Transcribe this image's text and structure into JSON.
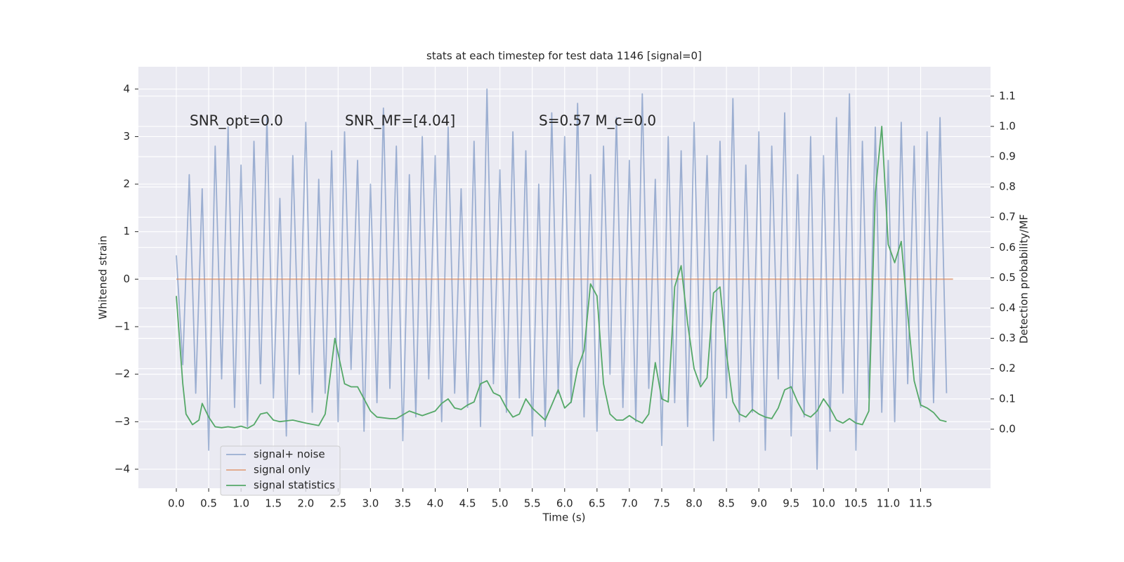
{
  "chart_data": {
    "type": "line",
    "title": "stats at each timestep for test data 1146 [signal=0]",
    "xlabel": "Time (s)",
    "ylabel": "Whitened strain",
    "y2label": "Detection probability/MF",
    "annotations": [
      "SNR_opt=0.0",
      "SNR_MF=[4.04]",
      "S=0.57   M_c=0.0"
    ],
    "xlim": [
      -0.586,
      12.58
    ],
    "ylim": [
      -4.4,
      4.47
    ],
    "y2lim": [
      -0.195,
      1.197
    ],
    "xticks": [
      {
        "value": 0,
        "label": "0.0"
      },
      {
        "value": 0.5,
        "label": "0.5"
      },
      {
        "value": 1,
        "label": "1.0"
      },
      {
        "value": 1.5,
        "label": "1.5"
      },
      {
        "value": 2,
        "label": "2.0"
      },
      {
        "value": 2.5,
        "label": "2.5"
      },
      {
        "value": 3,
        "label": "3.0"
      },
      {
        "value": 3.5,
        "label": "3.5"
      },
      {
        "value": 4,
        "label": "4.0"
      },
      {
        "value": 4.5,
        "label": "4.5"
      },
      {
        "value": 5,
        "label": "5.0"
      },
      {
        "value": 5.5,
        "label": "5.5"
      },
      {
        "value": 6,
        "label": "6.0"
      },
      {
        "value": 6.5,
        "label": "6.5"
      },
      {
        "value": 7,
        "label": "7.0"
      },
      {
        "value": 7.5,
        "label": "7.5"
      },
      {
        "value": 8,
        "label": "8.0"
      },
      {
        "value": 8.5,
        "label": "8.5"
      },
      {
        "value": 9,
        "label": "9.0"
      },
      {
        "value": 9.5,
        "label": "9.5"
      },
      {
        "value": 10,
        "label": "10.0"
      },
      {
        "value": 10.5,
        "label": "10.5"
      },
      {
        "value": 11,
        "label": "11.0"
      },
      {
        "value": 11.5,
        "label": "11.5"
      }
    ],
    "yticks": [
      {
        "value": -4,
        "label": "−4"
      },
      {
        "value": -3,
        "label": "−3"
      },
      {
        "value": -2,
        "label": "−2"
      },
      {
        "value": -1,
        "label": "−1"
      },
      0,
      1,
      2,
      3,
      4
    ],
    "y2ticks": [
      {
        "value": 0,
        "label": "0.0"
      },
      {
        "value": 0.1,
        "label": "0.1"
      },
      {
        "value": 0.2,
        "label": "0.2"
      },
      {
        "value": 0.3,
        "label": "0.3"
      },
      {
        "value": 0.4,
        "label": "0.4"
      },
      {
        "value": 0.5,
        "label": "0.5"
      },
      {
        "value": 0.6,
        "label": "0.6"
      },
      {
        "value": 0.7,
        "label": "0.7"
      },
      {
        "value": 0.8,
        "label": "0.8"
      },
      {
        "value": 0.9,
        "label": "0.9"
      },
      {
        "value": 1,
        "label": "1.0"
      },
      {
        "value": 1.1,
        "label": "1.1"
      }
    ],
    "grid": true,
    "legend": "lower left",
    "series": [
      {
        "name": "signal+ noise",
        "color": "#4c72b0",
        "opacity": 0.5,
        "x": [
          0,
          0.1,
          0.2,
          0.3,
          0.4,
          0.5,
          0.6,
          0.7,
          0.8,
          0.9,
          1,
          1.1,
          1.2,
          1.3,
          1.4,
          1.5,
          1.6,
          1.7,
          1.8,
          1.9,
          2,
          2.1,
          2.2,
          2.3,
          2.4,
          2.5,
          2.6,
          2.7,
          2.8,
          2.9,
          3,
          3.1,
          3.2,
          3.3,
          3.4,
          3.5,
          3.6,
          3.7,
          3.8,
          3.9,
          4,
          4.1,
          4.2,
          4.3,
          4.4,
          4.5,
          4.6,
          4.7,
          4.8,
          4.9,
          5,
          5.1,
          5.2,
          5.3,
          5.4,
          5.5,
          5.6,
          5.7,
          5.8,
          5.9,
          6,
          6.1,
          6.2,
          6.3,
          6.4,
          6.5,
          6.6,
          6.7,
          6.8,
          6.9,
          7,
          7.1,
          7.2,
          7.3,
          7.4,
          7.5,
          7.6,
          7.7,
          7.8,
          7.9,
          8,
          8.1,
          8.2,
          8.3,
          8.4,
          8.5,
          8.6,
          8.7,
          8.8,
          8.9,
          9,
          9.1,
          9.2,
          9.3,
          9.4,
          9.5,
          9.6,
          9.7,
          9.8,
          9.9,
          10,
          10.1,
          10.2,
          10.3,
          10.4,
          10.5,
          10.6,
          10.7,
          10.8,
          10.9,
          11,
          11.1,
          11.2,
          11.3,
          11.4,
          11.5,
          11.6,
          11.7,
          11.8,
          11.9
        ],
        "values": [
          0.5,
          -1.8,
          2.2,
          -2.4,
          1.9,
          -3.6,
          2.8,
          -2.1,
          3.2,
          -2.7,
          2.4,
          -3.1,
          2.9,
          -2.2,
          3.4,
          -2.5,
          1.7,
          -3.3,
          2.6,
          -2.0,
          3.3,
          -2.8,
          2.1,
          -2.4,
          2.7,
          -3.0,
          3.1,
          -1.9,
          2.5,
          -3.2,
          2.0,
          -2.6,
          3.6,
          -2.3,
          2.8,
          -3.4,
          2.2,
          -2.9,
          3.0,
          -2.1,
          2.6,
          -3.0,
          3.2,
          -2.4,
          1.9,
          -2.7,
          2.9,
          -3.1,
          4.0,
          -2.2,
          2.3,
          -2.8,
          3.1,
          -2.5,
          2.7,
          -3.3,
          2.0,
          -3.1,
          3.5,
          -2.4,
          3.0,
          -2.6,
          3.7,
          -2.9,
          2.2,
          -3.2,
          2.8,
          -2.0,
          3.4,
          -2.7,
          2.5,
          -3.0,
          3.9,
          -2.3,
          2.1,
          -3.5,
          3.0,
          -2.6,
          2.7,
          -3.1,
          3.3,
          -2.2,
          2.6,
          -3.4,
          2.9,
          -2.5,
          3.8,
          -3.0,
          2.4,
          -2.8,
          3.1,
          -3.6,
          2.8,
          -2.1,
          3.5,
          -3.3,
          2.2,
          -2.9,
          3.0,
          -4.0,
          2.6,
          -3.2,
          3.4,
          -2.4,
          3.9,
          -3.6,
          2.9,
          -2.5,
          3.2,
          -2.8,
          2.5,
          -3.0,
          3.3,
          -2.2,
          2.8,
          -2.7,
          3.1,
          -2.6,
          3.4,
          -2.4
        ]
      },
      {
        "name": "signal only",
        "color": "#dd8452",
        "opacity": 0.7,
        "x": [
          0,
          12
        ],
        "values": [
          0,
          0
        ]
      },
      {
        "name": "signal statistics",
        "color": "#55a868",
        "opacity": 1,
        "axis": "y2",
        "x": [
          0,
          0.1,
          0.15,
          0.25,
          0.35,
          0.4,
          0.5,
          0.6,
          0.7,
          0.8,
          0.9,
          1,
          1.1,
          1.2,
          1.3,
          1.4,
          1.5,
          1.6,
          1.8,
          2,
          2.2,
          2.3,
          2.35,
          2.45,
          2.55,
          2.6,
          2.7,
          2.8,
          2.9,
          3,
          3.1,
          3.3,
          3.4,
          3.6,
          3.8,
          4,
          4.1,
          4.2,
          4.3,
          4.4,
          4.5,
          4.6,
          4.7,
          4.8,
          4.9,
          5,
          5.1,
          5.2,
          5.3,
          5.4,
          5.5,
          5.6,
          5.7,
          5.8,
          5.9,
          6,
          6.1,
          6.2,
          6.3,
          6.4,
          6.5,
          6.6,
          6.7,
          6.8,
          6.9,
          7,
          7.1,
          7.2,
          7.3,
          7.4,
          7.5,
          7.6,
          7.7,
          7.8,
          7.9,
          8,
          8.1,
          8.2,
          8.3,
          8.4,
          8.5,
          8.6,
          8.7,
          8.8,
          8.9,
          9,
          9.1,
          9.2,
          9.3,
          9.4,
          9.5,
          9.6,
          9.7,
          9.8,
          9.9,
          10,
          10.1,
          10.2,
          10.3,
          10.4,
          10.5,
          10.6,
          10.7,
          10.8,
          10.9,
          11,
          11.1,
          11.2,
          11.3,
          11.4,
          11.5,
          11.6,
          11.7,
          11.8,
          11.9
        ],
        "values": [
          0.44,
          0.15,
          0.05,
          0.015,
          0.03,
          0.085,
          0.04,
          0.008,
          0.005,
          0.008,
          0.005,
          0.01,
          0.003,
          0.015,
          0.05,
          0.055,
          0.03,
          0.025,
          0.03,
          0.02,
          0.012,
          0.05,
          0.13,
          0.3,
          0.2,
          0.15,
          0.14,
          0.14,
          0.1,
          0.06,
          0.04,
          0.035,
          0.035,
          0.06,
          0.045,
          0.06,
          0.085,
          0.1,
          0.07,
          0.065,
          0.08,
          0.09,
          0.15,
          0.16,
          0.12,
          0.11,
          0.07,
          0.04,
          0.05,
          0.1,
          0.07,
          0.05,
          0.03,
          0.08,
          0.13,
          0.07,
          0.09,
          0.2,
          0.26,
          0.48,
          0.44,
          0.15,
          0.05,
          0.03,
          0.03,
          0.045,
          0.03,
          0.02,
          0.05,
          0.22,
          0.1,
          0.09,
          0.47,
          0.54,
          0.35,
          0.2,
          0.14,
          0.17,
          0.45,
          0.47,
          0.25,
          0.09,
          0.05,
          0.04,
          0.065,
          0.05,
          0.04,
          0.035,
          0.07,
          0.13,
          0.14,
          0.09,
          0.05,
          0.04,
          0.06,
          0.1,
          0.07,
          0.03,
          0.02,
          0.035,
          0.02,
          0.015,
          0.06,
          0.78,
          1.0,
          0.61,
          0.55,
          0.62,
          0.38,
          0.16,
          0.08,
          0.07,
          0.055,
          0.03,
          0.025
        ]
      }
    ]
  }
}
